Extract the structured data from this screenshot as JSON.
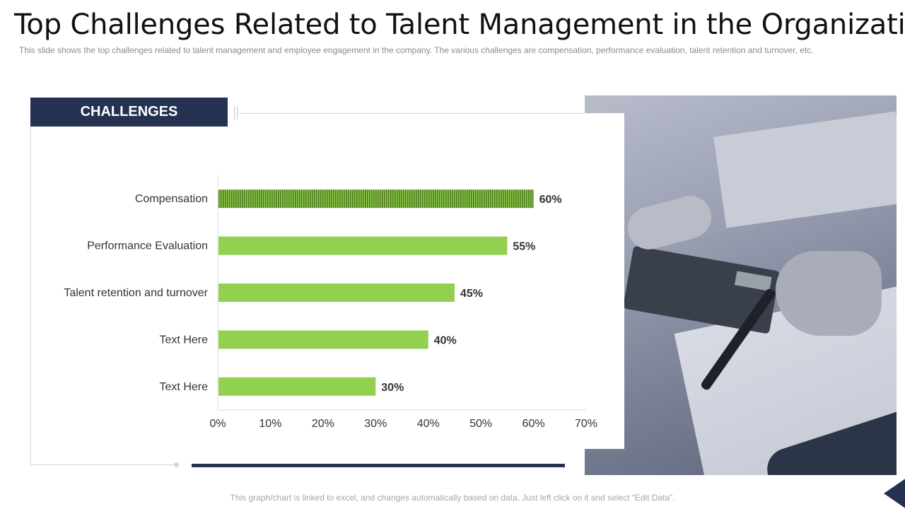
{
  "page": {
    "title": "Top Challenges Related to Talent Management in the Organization",
    "subtitle": "This slide shows the top challenges related to talent management and employee engagement in the company. The various challenges are compensation, performance evaluation, talent retention and turnover, etc.",
    "header_label": "CHALLENGES",
    "footer": "This graph/chart is linked to excel, and changes automatically based on data. Just left click on it and select “Edit Data”."
  },
  "colors": {
    "navy": "#243151",
    "bar": "#92d050",
    "bar_highlight": "#6a9a2e",
    "text": "#333333"
  },
  "chart_data": {
    "type": "bar",
    "orientation": "horizontal",
    "categories": [
      "Compensation",
      "Performance Evaluation",
      "Talent retention and turnover",
      "Text Here",
      "Text Here"
    ],
    "values": [
      60,
      55,
      45,
      40,
      30
    ],
    "value_labels": [
      "60%",
      "55%",
      "45%",
      "40%",
      "30%"
    ],
    "xlim": [
      0,
      70
    ],
    "xticks": [
      0,
      10,
      20,
      30,
      40,
      50,
      60,
      70
    ],
    "xtick_labels": [
      "0%",
      "10%",
      "20%",
      "30%",
      "40%",
      "50%",
      "60%",
      "70%"
    ],
    "title": "",
    "xlabel": "",
    "ylabel": "",
    "grid": false,
    "highlight_index": 0
  }
}
